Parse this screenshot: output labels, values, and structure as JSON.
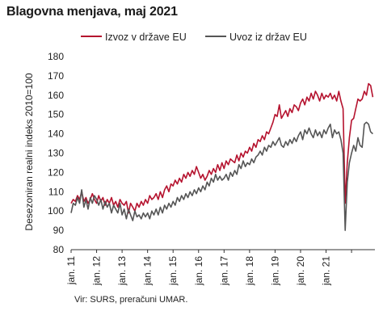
{
  "title": "Blagovna menjava, maj 2021",
  "source": "Vir: SURS, preračuni UMAR.",
  "chart_data": {
    "type": "line",
    "ylabel": "Desezoniran realni indeks 2010=100",
    "ylim": [
      80,
      180
    ],
    "yticks": [
      80,
      90,
      100,
      110,
      120,
      130,
      140,
      150,
      160,
      170,
      180
    ],
    "xticks": [
      "jan. 11",
      "jan. 12",
      "jan. 13",
      "jan. 14",
      "jan. 15",
      "jan. 16",
      "jan. 17",
      "jan. 18",
      "jan. 19",
      "jan. 20",
      "jan. 21"
    ],
    "grid": false,
    "legend": "top",
    "colors": {
      "export": "#b5122e",
      "import": "#555555"
    },
    "series": [
      {
        "name": "Izvoz v države EU",
        "color": "#b5122e",
        "anchors": [
          [
            0,
            104
          ],
          [
            1,
            106
          ],
          [
            2,
            105
          ],
          [
            3,
            108
          ],
          [
            4,
            106
          ],
          [
            5,
            110
          ],
          [
            6,
            105
          ],
          [
            7,
            107
          ],
          [
            8,
            104
          ],
          [
            9,
            106
          ],
          [
            10,
            109
          ],
          [
            11,
            106
          ],
          [
            12,
            104
          ],
          [
            13,
            108
          ],
          [
            14,
            105
          ],
          [
            15,
            107
          ],
          [
            16,
            103
          ],
          [
            17,
            106
          ],
          [
            18,
            104
          ],
          [
            19,
            107
          ],
          [
            20,
            103
          ],
          [
            21,
            105
          ],
          [
            22,
            102
          ],
          [
            23,
            106
          ],
          [
            24,
            104
          ],
          [
            25,
            103
          ],
          [
            26,
            105
          ],
          [
            27,
            99
          ],
          [
            28,
            104
          ],
          [
            29,
            102
          ],
          [
            30,
            100
          ],
          [
            31,
            104
          ],
          [
            32,
            102
          ],
          [
            33,
            105
          ],
          [
            34,
            103
          ],
          [
            35,
            106
          ],
          [
            36,
            104
          ],
          [
            37,
            108
          ],
          [
            38,
            106
          ],
          [
            39,
            107
          ],
          [
            40,
            109
          ],
          [
            41,
            106
          ],
          [
            42,
            110
          ],
          [
            43,
            107
          ],
          [
            44,
            111
          ],
          [
            45,
            113
          ],
          [
            46,
            110
          ],
          [
            47,
            114
          ],
          [
            48,
            113
          ],
          [
            49,
            116
          ],
          [
            50,
            114
          ],
          [
            51,
            117
          ],
          [
            52,
            115
          ],
          [
            53,
            119
          ],
          [
            54,
            117
          ],
          [
            55,
            120
          ],
          [
            56,
            118
          ],
          [
            57,
            121
          ],
          [
            58,
            119
          ],
          [
            59,
            123
          ],
          [
            60,
            120
          ],
          [
            61,
            117
          ],
          [
            62,
            119
          ],
          [
            63,
            116
          ],
          [
            64,
            118
          ],
          [
            65,
            121
          ],
          [
            66,
            119
          ],
          [
            67,
            122
          ],
          [
            68,
            120
          ],
          [
            69,
            124
          ],
          [
            70,
            121
          ],
          [
            71,
            125
          ],
          [
            72,
            122
          ],
          [
            73,
            126
          ],
          [
            74,
            124
          ],
          [
            75,
            127
          ],
          [
            76,
            126
          ],
          [
            77,
            125
          ],
          [
            78,
            129
          ],
          [
            79,
            126
          ],
          [
            80,
            130
          ],
          [
            81,
            128
          ],
          [
            82,
            131
          ],
          [
            83,
            130
          ],
          [
            84,
            133
          ],
          [
            85,
            131
          ],
          [
            86,
            135
          ],
          [
            87,
            133
          ],
          [
            88,
            137
          ],
          [
            89,
            136
          ],
          [
            90,
            139
          ],
          [
            91,
            137
          ],
          [
            92,
            141
          ],
          [
            93,
            140
          ],
          [
            94,
            143
          ],
          [
            95,
            146
          ],
          [
            96,
            150
          ],
          [
            97,
            149
          ],
          [
            98,
            155
          ],
          [
            99,
            148
          ],
          [
            100,
            150
          ],
          [
            101,
            152
          ],
          [
            102,
            149
          ],
          [
            103,
            153
          ],
          [
            104,
            151
          ],
          [
            105,
            155
          ],
          [
            106,
            154
          ],
          [
            107,
            152
          ],
          [
            108,
            156
          ],
          [
            109,
            158
          ],
          [
            110,
            155
          ],
          [
            111,
            159
          ],
          [
            112,
            157
          ],
          [
            113,
            161
          ],
          [
            114,
            158
          ],
          [
            115,
            162
          ],
          [
            116,
            160
          ],
          [
            117,
            157
          ],
          [
            118,
            161
          ],
          [
            119,
            158
          ],
          [
            120,
            160
          ],
          [
            121,
            159
          ],
          [
            122,
            161
          ],
          [
            123,
            158
          ],
          [
            124,
            160
          ],
          [
            125,
            157
          ],
          [
            126,
            162
          ],
          [
            127,
            157
          ],
          [
            128,
            153
          ],
          [
            129,
            104
          ],
          [
            130,
            125
          ],
          [
            131,
            138
          ],
          [
            132,
            147
          ],
          [
            133,
            148
          ],
          [
            134,
            153
          ],
          [
            135,
            158
          ],
          [
            136,
            157
          ],
          [
            137,
            158
          ],
          [
            138,
            162
          ],
          [
            139,
            160
          ],
          [
            140,
            166
          ],
          [
            141,
            165
          ],
          [
            142,
            159
          ]
        ]
      },
      {
        "name": "Uvoz iz držav EU",
        "color": "#555555",
        "anchors": [
          [
            0,
            99
          ],
          [
            1,
            104
          ],
          [
            2,
            103
          ],
          [
            3,
            107
          ],
          [
            4,
            104
          ],
          [
            5,
            111
          ],
          [
            6,
            102
          ],
          [
            7,
            106
          ],
          [
            8,
            101
          ],
          [
            9,
            107
          ],
          [
            10,
            104
          ],
          [
            11,
            108
          ],
          [
            12,
            106
          ],
          [
            13,
            103
          ],
          [
            14,
            106
          ],
          [
            15,
            101
          ],
          [
            16,
            105
          ],
          [
            17,
            102
          ],
          [
            18,
            104
          ],
          [
            19,
            99
          ],
          [
            20,
            103
          ],
          [
            21,
            101
          ],
          [
            22,
            99
          ],
          [
            23,
            104
          ],
          [
            24,
            98
          ],
          [
            25,
            101
          ],
          [
            26,
            96
          ],
          [
            27,
            101
          ],
          [
            28,
            98
          ],
          [
            29,
            95
          ],
          [
            30,
            100
          ],
          [
            31,
            97
          ],
          [
            32,
            98
          ],
          [
            33,
            96
          ],
          [
            34,
            99
          ],
          [
            35,
            97
          ],
          [
            36,
            99
          ],
          [
            37,
            96
          ],
          [
            38,
            100
          ],
          [
            39,
            98
          ],
          [
            40,
            101
          ],
          [
            41,
            98
          ],
          [
            42,
            102
          ],
          [
            43,
            99
          ],
          [
            44,
            103
          ],
          [
            45,
            101
          ],
          [
            46,
            104
          ],
          [
            47,
            102
          ],
          [
            48,
            105
          ],
          [
            49,
            103
          ],
          [
            50,
            107
          ],
          [
            51,
            105
          ],
          [
            52,
            108
          ],
          [
            53,
            106
          ],
          [
            54,
            109
          ],
          [
            55,
            107
          ],
          [
            56,
            110
          ],
          [
            57,
            108
          ],
          [
            58,
            111
          ],
          [
            59,
            109
          ],
          [
            60,
            112
          ],
          [
            61,
            110
          ],
          [
            62,
            113
          ],
          [
            63,
            111
          ],
          [
            64,
            115
          ],
          [
            65,
            113
          ],
          [
            66,
            117
          ],
          [
            67,
            115
          ],
          [
            68,
            119
          ],
          [
            69,
            116
          ],
          [
            70,
            118
          ],
          [
            71,
            116
          ],
          [
            72,
            117
          ],
          [
            73,
            119
          ],
          [
            74,
            116
          ],
          [
            75,
            120
          ],
          [
            76,
            118
          ],
          [
            77,
            121
          ],
          [
            78,
            119
          ],
          [
            79,
            124
          ],
          [
            80,
            122
          ],
          [
            81,
            126
          ],
          [
            82,
            123
          ],
          [
            83,
            125
          ],
          [
            84,
            124
          ],
          [
            85,
            127
          ],
          [
            86,
            125
          ],
          [
            87,
            128
          ],
          [
            88,
            129
          ],
          [
            89,
            131
          ],
          [
            90,
            129
          ],
          [
            91,
            133
          ],
          [
            92,
            131
          ],
          [
            93,
            134
          ],
          [
            94,
            133
          ],
          [
            95,
            136
          ],
          [
            96,
            134
          ],
          [
            97,
            136
          ],
          [
            98,
            138
          ],
          [
            99,
            134
          ],
          [
            100,
            133
          ],
          [
            101,
            136
          ],
          [
            102,
            134
          ],
          [
            103,
            137
          ],
          [
            104,
            135
          ],
          [
            105,
            138
          ],
          [
            106,
            136
          ],
          [
            107,
            139
          ],
          [
            108,
            141
          ],
          [
            109,
            137
          ],
          [
            110,
            142
          ],
          [
            111,
            140
          ],
          [
            112,
            143
          ],
          [
            113,
            140
          ],
          [
            114,
            138
          ],
          [
            115,
            142
          ],
          [
            116,
            139
          ],
          [
            117,
            141
          ],
          [
            118,
            138
          ],
          [
            119,
            142
          ],
          [
            120,
            140
          ],
          [
            121,
            143
          ],
          [
            122,
            145
          ],
          [
            123,
            138
          ],
          [
            124,
            142
          ],
          [
            125,
            140
          ],
          [
            126,
            141
          ],
          [
            127,
            137
          ],
          [
            128,
            130
          ],
          [
            129,
            90
          ],
          [
            130,
            115
          ],
          [
            131,
            125
          ],
          [
            132,
            130
          ],
          [
            133,
            134
          ],
          [
            134,
            131
          ],
          [
            135,
            138
          ],
          [
            136,
            134
          ],
          [
            137,
            133
          ],
          [
            138,
            145
          ],
          [
            139,
            146
          ],
          [
            140,
            145
          ],
          [
            141,
            141
          ],
          [
            142,
            140
          ]
        ]
      }
    ]
  }
}
